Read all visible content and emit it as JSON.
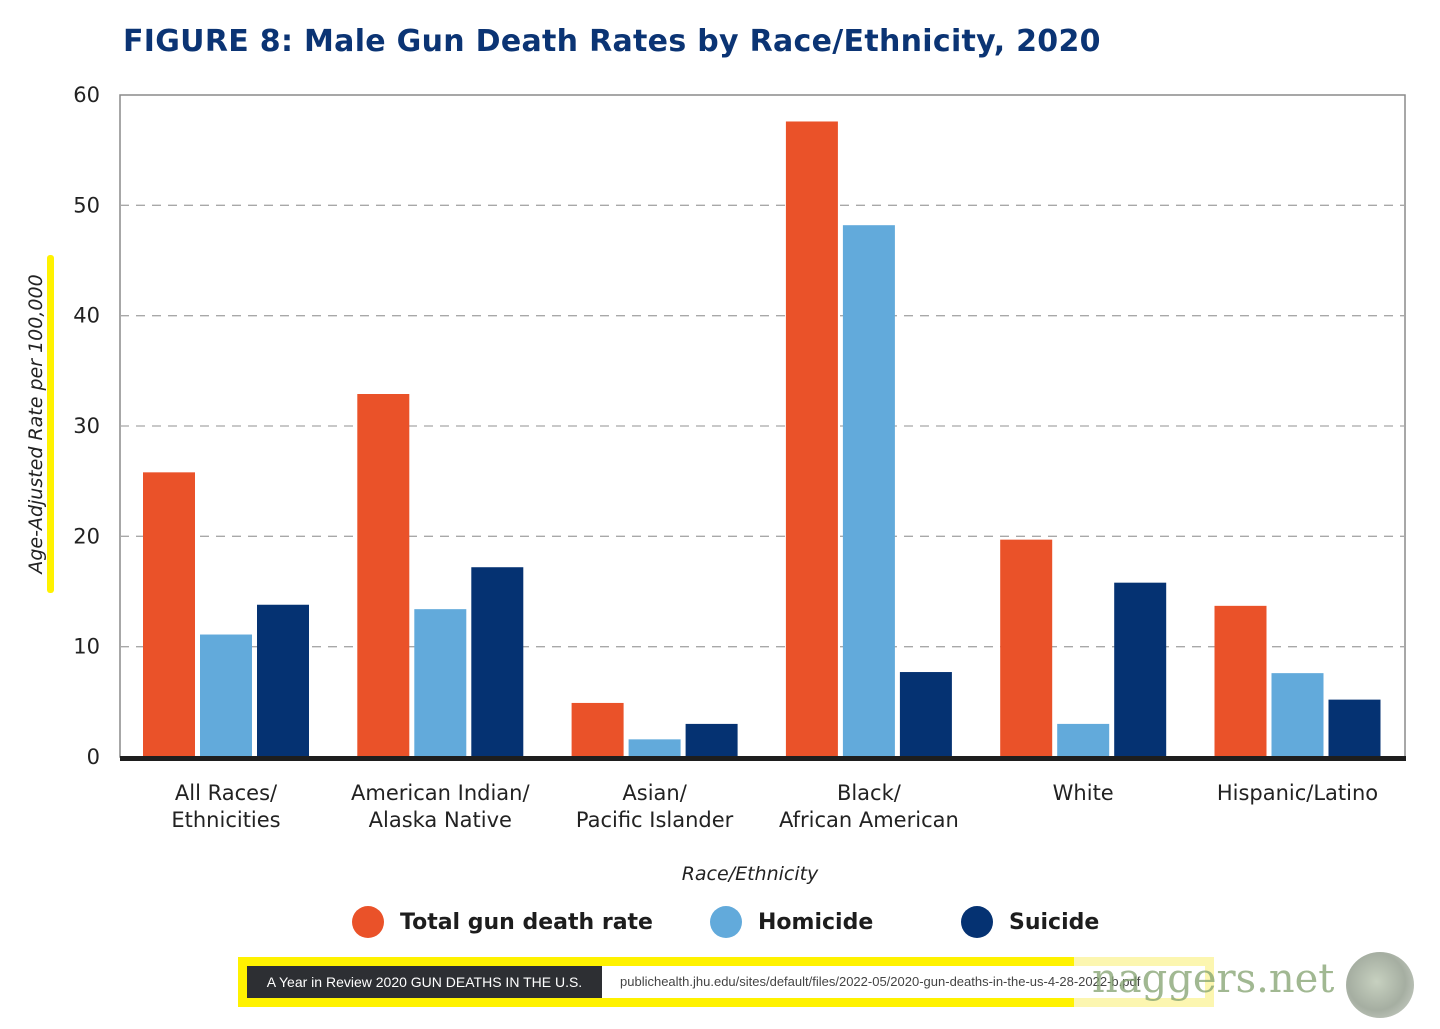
{
  "chart_data": {
    "type": "bar",
    "title": "FIGURE 8: Male Gun Death Rates by Race/Ethnicity, 2020",
    "xlabel": "Race/Ethnicity",
    "ylabel": "Age-Adjusted Rate per 100,000",
    "ylim": [
      0,
      60
    ],
    "yticks": [
      0,
      10,
      20,
      30,
      40,
      50,
      60
    ],
    "grid": true,
    "legend_position": "bottom",
    "categories": [
      [
        "All Races/",
        "Ethnicities"
      ],
      [
        "American Indian/",
        "Alaska Native"
      ],
      [
        "Asian/",
        "Pacific Islander"
      ],
      [
        "Black/",
        "African American"
      ],
      [
        "White"
      ],
      [
        "Hispanic/Latino"
      ]
    ],
    "series": [
      {
        "name": "Total gun death rate",
        "color": "#ea5229",
        "values": [
          25.8,
          32.9,
          4.9,
          57.6,
          19.7,
          13.7
        ]
      },
      {
        "name": "Homicide",
        "color": "#62aadb",
        "values": [
          11.1,
          13.4,
          1.6,
          48.2,
          3.0,
          7.6
        ]
      },
      {
        "name": "Suicide",
        "color": "#053272",
        "values": [
          13.8,
          17.2,
          3.0,
          7.7,
          15.8,
          5.2
        ]
      }
    ]
  },
  "footer": {
    "source_label": "A Year in Review 2020 GUN DEATHS IN THE U.S.",
    "url": "publichealth.jhu.edu/sites/default/files/2022-05/2020-gun-deaths-in-the-us-4-28-2022-b.pdf"
  },
  "watermark": "naggers.net"
}
